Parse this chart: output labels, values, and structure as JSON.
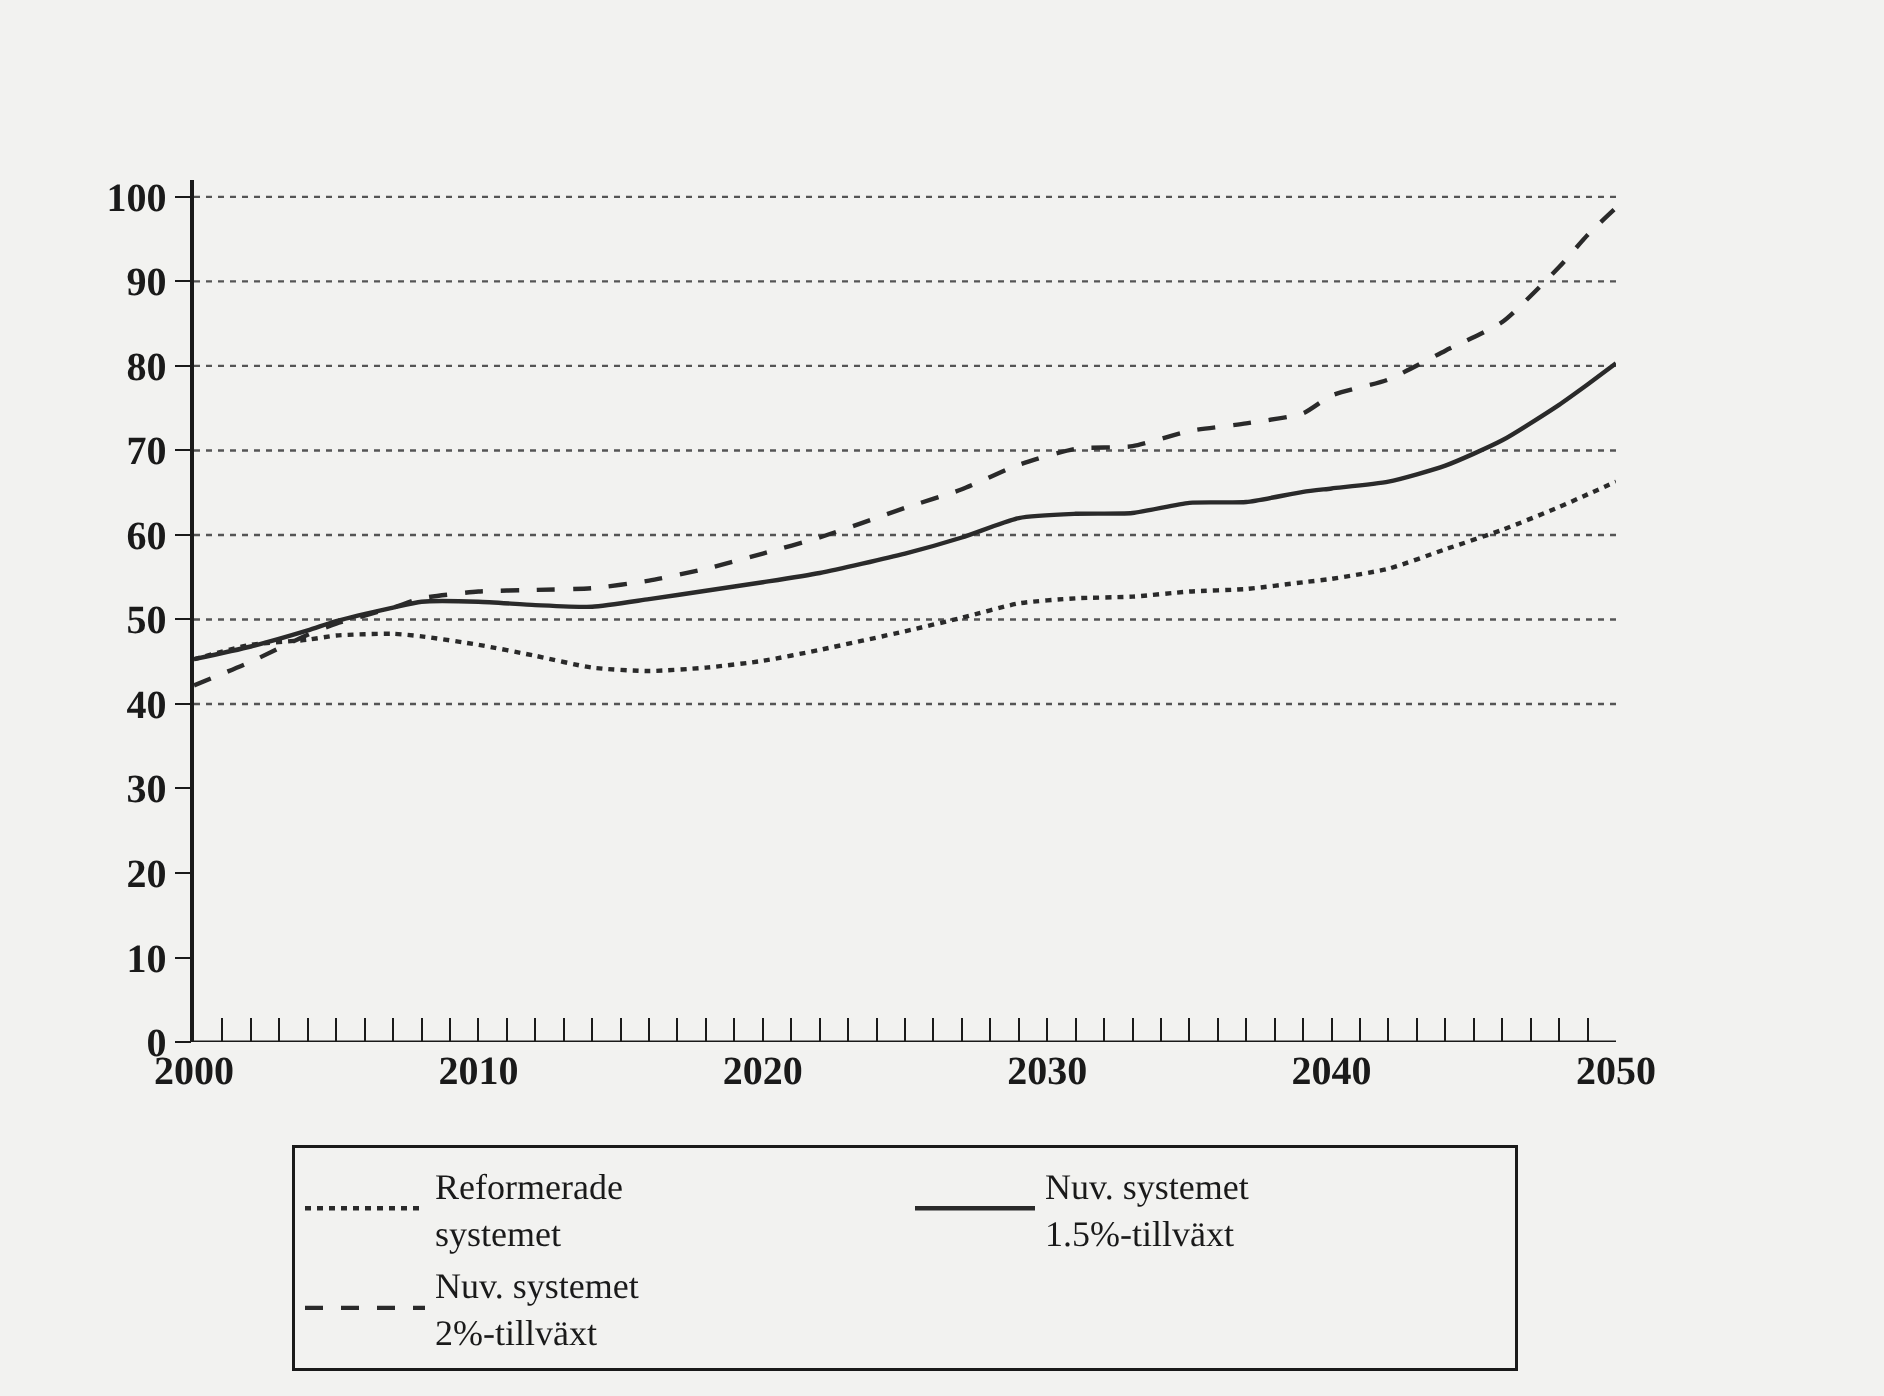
{
  "chart_data": {
    "type": "line",
    "legend": "bottom",
    "xlim": [
      2000,
      2050
    ],
    "ylim": [
      0,
      102
    ],
    "x": [
      2000,
      2002,
      2004,
      2005,
      2007,
      2008,
      2010,
      2012,
      2014,
      2016,
      2018,
      2020,
      2022,
      2025,
      2027,
      2029,
      2031,
      2033,
      2035,
      2037,
      2039,
      2040,
      2042,
      2044,
      2046,
      2048,
      2049,
      2050
    ],
    "series": [
      {
        "name": "Reformerade\nsystemet",
        "color": "#2a2a2a",
        "line_style": "dotted",
        "values": [
          45.3,
          47,
          47.6,
          48.1,
          48.3,
          48,
          47,
          45.7,
          44.3,
          43.9,
          44.3,
          45.1,
          46.4,
          48.6,
          50.2,
          51.9,
          52.5,
          52.7,
          53.3,
          53.6,
          54.4,
          54.8,
          56,
          58.3,
          60.6,
          63.3,
          64.8,
          66.3
        ]
      },
      {
        "name": "Nuv. systemet\n1.5%-tillväxt",
        "color": "#2a2a2a",
        "line_style": "solid",
        "values": [
          45.3,
          46.8,
          48.7,
          49.8,
          51.4,
          52.1,
          52.1,
          51.7,
          51.5,
          52.4,
          53.4,
          54.4,
          55.5,
          57.8,
          59.7,
          62,
          62.5,
          62.6,
          63.8,
          63.9,
          65.1,
          65.5,
          66.3,
          68.2,
          71.2,
          75.4,
          77.8,
          80.3
        ]
      },
      {
        "name": "Nuv. systemet\n2%-tillväxt",
        "color": "#2a2a2a",
        "line_style": "dashed",
        "values": [
          42.2,
          45,
          48.2,
          49.5,
          51.4,
          52.5,
          53.3,
          53.5,
          53.7,
          54.6,
          56,
          57.8,
          59.7,
          63.2,
          65.4,
          68.3,
          70.2,
          70.5,
          72.3,
          73.2,
          74.4,
          76.5,
          78.4,
          81.8,
          85.2,
          91.7,
          95.5,
          98.7
        ]
      }
    ],
    "yticks": [
      0,
      10,
      20,
      30,
      40,
      50,
      60,
      70,
      80,
      90,
      100
    ],
    "xticks": [
      2000,
      {
        "value": 2001,
        "label": null
      },
      {
        "value": 2002,
        "label": null
      },
      {
        "value": 2003,
        "label": null
      },
      {
        "value": 2004,
        "label": null
      },
      {
        "value": 2005,
        "label": null
      },
      {
        "value": 2006,
        "label": null
      },
      {
        "value": 2007,
        "label": null
      },
      {
        "value": 2008,
        "label": null
      },
      {
        "value": 2009,
        "label": null
      },
      2010,
      {
        "value": 2011,
        "label": null
      },
      {
        "value": 2012,
        "label": null
      },
      {
        "value": 2013,
        "label": null
      },
      {
        "value": 2014,
        "label": null
      },
      {
        "value": 2015,
        "label": null
      },
      {
        "value": 2016,
        "label": null
      },
      {
        "value": 2017,
        "label": null
      },
      {
        "value": 2018,
        "label": null
      },
      {
        "value": 2019,
        "label": null
      },
      2020,
      {
        "value": 2021,
        "label": null
      },
      {
        "value": 2022,
        "label": null
      },
      {
        "value": 2023,
        "label": null
      },
      {
        "value": 2024,
        "label": null
      },
      {
        "value": 2025,
        "label": null
      },
      {
        "value": 2026,
        "label": null
      },
      {
        "value": 2027,
        "label": null
      },
      {
        "value": 2028,
        "label": null
      },
      {
        "value": 2029,
        "label": null
      },
      2030,
      {
        "value": 2031,
        "label": null
      },
      {
        "value": 2032,
        "label": null
      },
      {
        "value": 2033,
        "label": null
      },
      {
        "value": 2034,
        "label": null
      },
      {
        "value": 2035,
        "label": null
      },
      {
        "value": 2036,
        "label": null
      },
      {
        "value": 2037,
        "label": null
      },
      {
        "value": 2038,
        "label": null
      },
      {
        "value": 2039,
        "label": null
      },
      2040,
      {
        "value": 2041,
        "label": null
      },
      {
        "value": 2042,
        "label": null
      },
      {
        "value": 2043,
        "label": null
      },
      {
        "value": 2044,
        "label": null
      },
      {
        "value": 2045,
        "label": null
      },
      {
        "value": 2046,
        "label": null
      },
      {
        "value": 2047,
        "label": null
      },
      {
        "value": 2048,
        "label": null
      },
      {
        "value": 2049,
        "label": null
      },
      2050
    ],
    "ref_lines": [
      {
        "axis": "y",
        "value": 40,
        "color": "#555555",
        "line_style": "dotted"
      },
      {
        "axis": "y",
        "value": 50,
        "color": "#555555",
        "line_style": "dotted"
      },
      {
        "axis": "y",
        "value": 60,
        "color": "#555555",
        "line_style": "dotted"
      },
      {
        "axis": "y",
        "value": 70,
        "color": "#555555",
        "line_style": "dotted"
      },
      {
        "axis": "y",
        "value": 80,
        "color": "#555555",
        "line_style": "dotted"
      },
      {
        "axis": "y",
        "value": 90,
        "color": "#555555",
        "line_style": "dotted"
      },
      {
        "axis": "y",
        "value": 100,
        "color": "#555555",
        "line_style": "dotted"
      }
    ]
  }
}
